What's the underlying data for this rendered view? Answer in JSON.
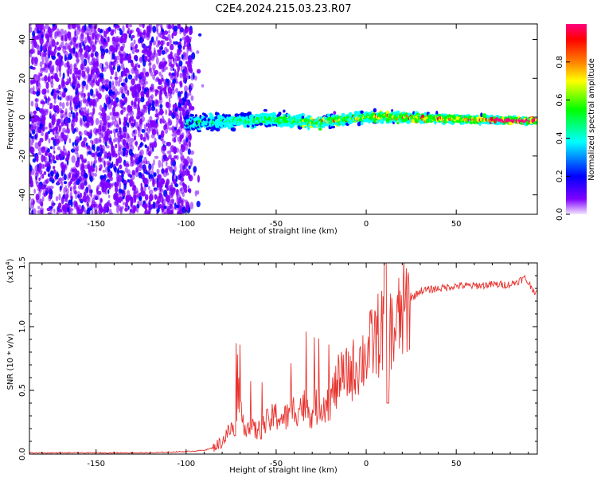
{
  "title": "C2E4.2024.215.03.23.R07",
  "chart_data": [
    {
      "type": "heatmap",
      "xlabel": "Height of straight line (km)",
      "ylabel": "Frequency (Hz)",
      "xlim": [
        -187,
        95
      ],
      "ylim": [
        -50,
        48
      ],
      "xticks": [
        -150,
        -100,
        -50,
        0,
        50
      ],
      "yticks": [
        -40,
        -20,
        0,
        20,
        40
      ],
      "colorbar": {
        "label": "Normalized spectral amplitude",
        "range": [
          0,
          1
        ],
        "ticks": [
          "0.0",
          "0.2",
          "0.4",
          "0.6",
          "0.8"
        ],
        "colors": [
          "#f3e6ff",
          "#7f00ff",
          "#0000ff",
          "#00ffff",
          "#00ff00",
          "#ffff00",
          "#ff8000",
          "#ff0000",
          "#ff0080"
        ]
      },
      "regions": [
        {
          "x": [
            -187,
            -97
          ],
          "freq": [
            -50,
            48
          ],
          "amplitude": "low, scattered noise"
        },
        {
          "x": [
            -100,
            95
          ],
          "freq": [
            -8,
            4
          ],
          "amplitude": "signal band, increasing with height"
        }
      ],
      "signal_center_freq": [
        {
          "x": -100,
          "y": -3
        },
        {
          "x": -75,
          "y": -2
        },
        {
          "x": -50,
          "y": -1
        },
        {
          "x": -30,
          "y": -3
        },
        {
          "x": -10,
          "y": -1
        },
        {
          "x": 0,
          "y": 0
        },
        {
          "x": 20,
          "y": 0
        },
        {
          "x": 50,
          "y": -1
        },
        {
          "x": 95,
          "y": -2
        }
      ]
    },
    {
      "type": "line",
      "xlabel": "Height of straight line (km)",
      "ylabel": "SNR (10 * v/v)",
      "yscale_label": "(x10",
      "yscale_exp": "4",
      "ylabel_full": "(x10^4)",
      "xlim": [
        -187,
        95
      ],
      "ylim": [
        0,
        1.5
      ],
      "xticks": [
        -150,
        -100,
        -50,
        0,
        50
      ],
      "yticks": [
        "0.0",
        "0.5",
        "1.0",
        "1.5"
      ],
      "color": "#e8322d",
      "series": [
        {
          "x": [
            -187,
            -160,
            -140,
            -120,
            -100,
            -90,
            -85,
            -80,
            -75,
            -70,
            -65,
            -60,
            -55,
            -50,
            -45,
            -40,
            -35,
            -30,
            -25,
            -20,
            -15,
            -10,
            -5,
            0,
            5,
            10,
            15,
            20,
            25,
            30,
            40,
            50,
            60,
            70,
            80,
            88,
            95
          ],
          "y": [
            0.01,
            0.01,
            0.01,
            0.01,
            0.02,
            0.03,
            0.05,
            0.1,
            0.2,
            0.3,
            0.2,
            0.18,
            0.25,
            0.3,
            0.28,
            0.35,
            0.38,
            0.33,
            0.4,
            0.42,
            0.58,
            0.62,
            0.7,
            0.78,
            0.9,
            1.0,
            0.95,
            1.1,
            1.22,
            1.28,
            1.3,
            1.32,
            1.32,
            1.33,
            1.33,
            1.38,
            1.25
          ]
        }
      ]
    }
  ]
}
